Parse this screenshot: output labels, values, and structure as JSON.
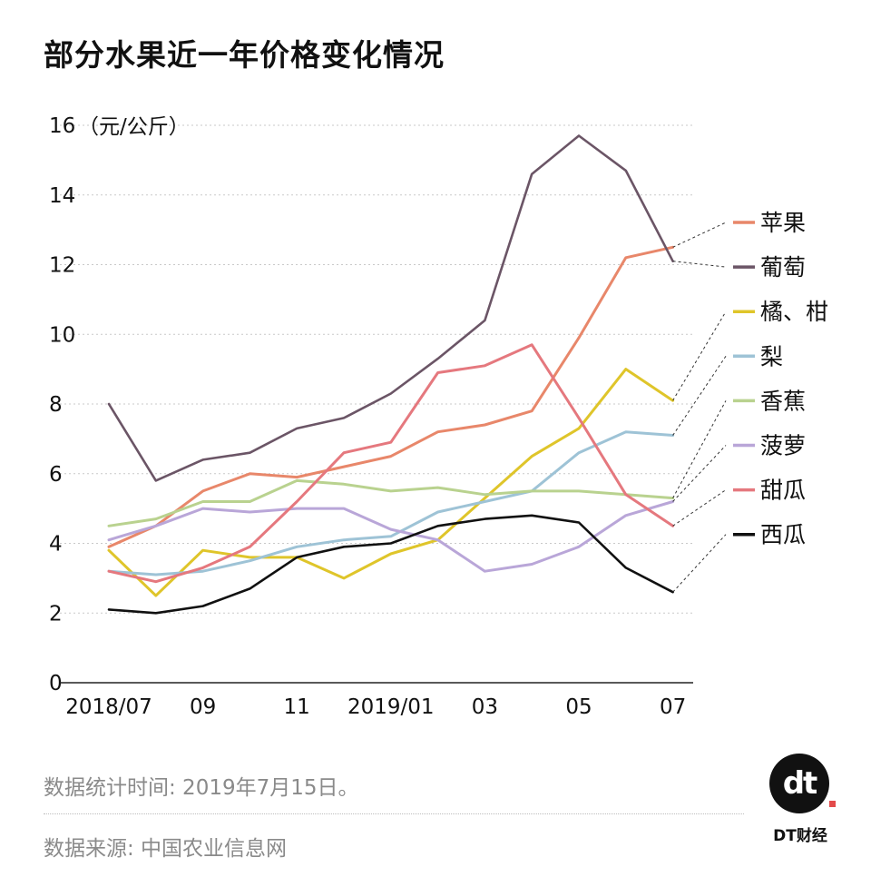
{
  "title": "部分水果近一年价格变化情况",
  "chart_data": {
    "type": "line",
    "ylabel": "（元/公斤）",
    "ylim": [
      0,
      16
    ],
    "yticks": [
      "0",
      "2",
      "4",
      "6",
      "8",
      "10",
      "12",
      "14",
      "16"
    ],
    "x_tick_labels": [
      "2018/07",
      "09",
      "11",
      "2019/01",
      "03",
      "05",
      "07"
    ],
    "x_tick_index": [
      0,
      2,
      4,
      6,
      8,
      10,
      12
    ],
    "grid": true,
    "series": [
      {
        "name": "苹果",
        "color": "#e8876a",
        "values": [
          3.9,
          4.5,
          5.5,
          6.0,
          5.9,
          6.2,
          6.5,
          7.2,
          7.4,
          7.8,
          9.9,
          12.2,
          12.5
        ]
      },
      {
        "name": "葡萄",
        "color": "#6b5566",
        "values": [
          8.0,
          5.8,
          6.4,
          6.6,
          7.3,
          7.6,
          8.3,
          9.3,
          10.4,
          14.6,
          15.7,
          14.7,
          12.1
        ]
      },
      {
        "name": "橘、柑",
        "color": "#dfc52a",
        "values": [
          3.8,
          2.5,
          3.8,
          3.6,
          3.6,
          3.0,
          3.7,
          4.1,
          5.3,
          6.5,
          7.3,
          9.0,
          8.1
        ]
      },
      {
        "name": "梨",
        "color": "#9ec3d6",
        "values": [
          3.2,
          3.1,
          3.2,
          3.5,
          3.9,
          4.1,
          4.2,
          4.9,
          5.2,
          5.5,
          6.6,
          7.2,
          7.1
        ]
      },
      {
        "name": "香蕉",
        "color": "#b9d28f",
        "values": [
          4.5,
          4.7,
          5.2,
          5.2,
          5.8,
          5.7,
          5.5,
          5.6,
          5.4,
          5.5,
          5.5,
          5.4,
          5.3
        ]
      },
      {
        "name": "菠萝",
        "color": "#b9a6d8",
        "values": [
          4.1,
          4.5,
          5.0,
          4.9,
          5.0,
          5.0,
          4.4,
          4.1,
          3.2,
          3.4,
          3.9,
          4.8,
          5.2
        ]
      },
      {
        "name": "甜瓜",
        "color": "#e5787e",
        "values": [
          3.2,
          2.9,
          3.3,
          3.9,
          5.2,
          6.6,
          6.9,
          8.9,
          9.1,
          9.7,
          7.6,
          5.4,
          4.5
        ]
      },
      {
        "name": "西瓜",
        "color": "#111111",
        "values": [
          2.1,
          2.0,
          2.2,
          2.7,
          3.6,
          3.9,
          4.0,
          4.5,
          4.7,
          4.8,
          4.6,
          3.3,
          2.6
        ]
      }
    ]
  },
  "source_time": "数据统计时间: 2019年7月15日。",
  "source": "数据来源: 中国农业信息网",
  "brand": {
    "logo_text": "dt",
    "name": "DT财经"
  }
}
